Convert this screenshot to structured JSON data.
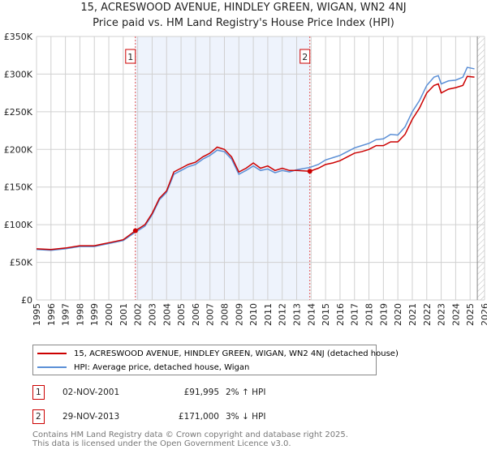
{
  "chart_data": {
    "type": "line",
    "title": "15, ACRESWOOD AVENUE, HINDLEY GREEN, WIGAN, WN2 4NJ",
    "subtitle": "Price paid vs. HM Land Registry's House Price Index (HPI)",
    "xlim": [
      1995,
      2026
    ],
    "ylim": [
      0,
      350000
    ],
    "x_ticks": [
      "1995",
      "1996",
      "1997",
      "1998",
      "1999",
      "2000",
      "2001",
      "2002",
      "2003",
      "2004",
      "2005",
      "2006",
      "2007",
      "2008",
      "2009",
      "2010",
      "2011",
      "2012",
      "2013",
      "2014",
      "2015",
      "2016",
      "2017",
      "2018",
      "2019",
      "2020",
      "2021",
      "2022",
      "2023",
      "2024",
      "2025",
      "2026"
    ],
    "y_ticks": [
      {
        "v": 0,
        "label": "£0"
      },
      {
        "v": 50000,
        "label": "£50K"
      },
      {
        "v": 100000,
        "label": "£100K"
      },
      {
        "v": 150000,
        "label": "£150K"
      },
      {
        "v": 200000,
        "label": "£200K"
      },
      {
        "v": 250000,
        "label": "£250K"
      },
      {
        "v": 300000,
        "label": "£300K"
      },
      {
        "v": 350000,
        "label": "£350K"
      }
    ],
    "series": [
      {
        "name": "15, ACRESWOOD AVENUE, HINDLEY GREEN, WIGAN, WN2 4NJ (detached house)",
        "color": "#cc0000",
        "x": [
          1995,
          1996,
          1997,
          1998,
          1999,
          2000,
          2001,
          2001.84,
          2002.5,
          2003,
          2003.5,
          2004,
          2004.5,
          2005,
          2005.5,
          2006,
          2006.5,
          2007,
          2007.5,
          2008,
          2008.5,
          2009,
          2009.5,
          2010,
          2010.5,
          2011,
          2011.5,
          2012,
          2012.5,
          2013,
          2013.91,
          2014.5,
          2015,
          2015.5,
          2016,
          2016.5,
          2017,
          2017.5,
          2018,
          2018.5,
          2019,
          2019.5,
          2020,
          2020.5,
          2021,
          2021.5,
          2022,
          2022.5,
          2022.8,
          2023,
          2023.5,
          2024,
          2024.5,
          2024.8,
          2025.3
        ],
        "y": [
          68000,
          67000,
          69000,
          72000,
          72000,
          76000,
          80000,
          91995,
          100000,
          115000,
          135000,
          145000,
          170000,
          175000,
          180000,
          183000,
          190000,
          195000,
          203000,
          200000,
          190000,
          170000,
          175000,
          182000,
          175000,
          178000,
          172000,
          175000,
          172000,
          172000,
          171000,
          175000,
          180000,
          182000,
          185000,
          190000,
          195000,
          197000,
          200000,
          205000,
          205000,
          210000,
          210000,
          220000,
          240000,
          255000,
          275000,
          285000,
          287000,
          275000,
          280000,
          282000,
          285000,
          297000,
          296000
        ]
      },
      {
        "name": "HPI: Average price, detached house, Wigan",
        "color": "#5b8fd6",
        "x": [
          1995,
          1996,
          1997,
          1998,
          1999,
          2000,
          2001,
          2001.84,
          2002.5,
          2003,
          2003.5,
          2004,
          2004.5,
          2005,
          2005.5,
          2006,
          2006.5,
          2007,
          2007.5,
          2008,
          2008.5,
          2009,
          2009.5,
          2010,
          2010.5,
          2011,
          2011.5,
          2012,
          2012.5,
          2013,
          2013.91,
          2014.5,
          2015,
          2015.5,
          2016,
          2016.5,
          2017,
          2017.5,
          2018,
          2018.5,
          2019,
          2019.5,
          2020,
          2020.5,
          2021,
          2021.5,
          2022,
          2022.5,
          2022.8,
          2023,
          2023.5,
          2024,
          2024.5,
          2024.8,
          2025.3
        ],
        "y": [
          67000,
          66000,
          68000,
          71000,
          71000,
          75000,
          79000,
          90000,
          98000,
          113000,
          133000,
          143000,
          167000,
          172000,
          177000,
          180000,
          187000,
          192000,
          199000,
          197000,
          187000,
          167000,
          172000,
          178000,
          172000,
          174000,
          169000,
          172000,
          170000,
          173000,
          176000,
          180000,
          186000,
          189000,
          192000,
          197000,
          202000,
          205000,
          208000,
          213000,
          214000,
          220000,
          219000,
          230000,
          250000,
          265000,
          285000,
          296000,
          298000,
          287000,
          291000,
          292000,
          296000,
          309000,
          307000
        ]
      }
    ],
    "sales": [
      {
        "label": "1",
        "x": 2001.84,
        "price": 91995
      },
      {
        "label": "2",
        "x": 2013.91,
        "price": 171000
      }
    ]
  },
  "legend": {
    "property": "15, ACRESWOOD AVENUE, HINDLEY GREEN, WIGAN, WN2 4NJ (detached house)",
    "hpi": "HPI: Average price, detached house, Wigan"
  },
  "transactions": [
    {
      "num": "1",
      "date": "02-NOV-2001",
      "price": "£91,995",
      "hpi": "2% ↑ HPI"
    },
    {
      "num": "2",
      "date": "29-NOV-2013",
      "price": "£171,000",
      "hpi": "3% ↓ HPI"
    }
  ],
  "footer": {
    "line1": "Contains HM Land Registry data © Crown copyright and database right 2025.",
    "line2": "This data is licensed under the Open Government Licence v3.0."
  }
}
